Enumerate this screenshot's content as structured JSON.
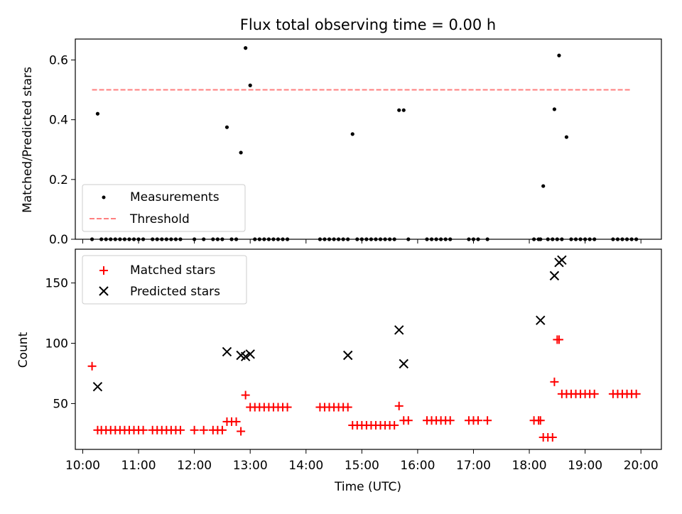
{
  "figure": {
    "title": "Flux total observing time = 0.00 h",
    "xlabel": "Time (UTC)"
  },
  "chart_data": [
    {
      "type": "scatter",
      "ylabel": "Matched/Predicted stars",
      "xlim": [
        "09:52",
        "20:22"
      ],
      "ylim": [
        0,
        0.67
      ],
      "yticks": [
        0.0,
        0.2,
        0.4,
        0.6
      ],
      "ytick_labels": [
        "0.0",
        "0.2",
        "0.4",
        "0.6"
      ],
      "legend_position": "lower-left",
      "colors": {
        "measurements": "#000000",
        "threshold": "#ff7f7f"
      },
      "series": [
        {
          "name": "Measurements",
          "kind": "points",
          "x": [
            "10:10",
            "10:16",
            "10:20",
            "10:25",
            "10:30",
            "10:35",
            "10:40",
            "10:45",
            "10:50",
            "10:55",
            "11:00",
            "11:05",
            "11:15",
            "11:20",
            "11:25",
            "11:30",
            "11:35",
            "11:40",
            "11:45",
            "12:00",
            "12:10",
            "12:20",
            "12:25",
            "12:30",
            "12:35",
            "12:40",
            "12:45",
            "12:50",
            "12:55",
            "13:00",
            "13:05",
            "13:10",
            "13:15",
            "13:20",
            "13:25",
            "13:30",
            "13:35",
            "13:40",
            "14:15",
            "14:20",
            "14:25",
            "14:30",
            "14:35",
            "14:40",
            "14:45",
            "14:50",
            "14:55",
            "15:00",
            "15:05",
            "15:10",
            "15:15",
            "15:20",
            "15:25",
            "15:30",
            "15:35",
            "15:40",
            "15:45",
            "15:50",
            "16:10",
            "16:15",
            "16:20",
            "16:25",
            "16:30",
            "16:35",
            "16:55",
            "17:00",
            "17:05",
            "17:15",
            "18:05",
            "18:10",
            "18:12",
            "18:15",
            "18:20",
            "18:25",
            "18:27",
            "18:30",
            "18:32",
            "18:35",
            "18:40",
            "18:45",
            "18:50",
            "18:55",
            "19:00",
            "19:05",
            "19:10",
            "19:30",
            "19:35",
            "19:40",
            "19:45",
            "19:50",
            "19:55"
          ],
          "y": [
            0.0,
            0.42,
            0.0,
            0.0,
            0.0,
            0.0,
            0.0,
            0.0,
            0.0,
            0.0,
            0.0,
            0.0,
            0.0,
            0.0,
            0.0,
            0.0,
            0.0,
            0.0,
            0.0,
            0.0,
            0.0,
            0.0,
            0.0,
            0.0,
            0.375,
            0.0,
            0.0,
            0.29,
            0.64,
            0.515,
            0.0,
            0.0,
            0.0,
            0.0,
            0.0,
            0.0,
            0.0,
            0.0,
            0.0,
            0.0,
            0.0,
            0.0,
            0.0,
            0.0,
            0.0,
            0.352,
            0.0,
            0.0,
            0.0,
            0.0,
            0.0,
            0.0,
            0.0,
            0.0,
            0.0,
            0.432,
            0.432,
            0.0,
            0.0,
            0.0,
            0.0,
            0.0,
            0.0,
            0.0,
            0.0,
            0.0,
            0.0,
            0.0,
            0.0,
            0.0,
            0.0,
            0.178,
            0.0,
            0.0,
            0.435,
            0.0,
            0.615,
            0.0,
            0.342,
            0.0,
            0.0,
            0.0,
            0.0,
            0.0,
            0.0,
            0.0,
            0.0,
            0.0,
            0.0,
            0.0,
            0.0
          ]
        },
        {
          "name": "Threshold",
          "kind": "dashed-line",
          "x": [
            "10:10",
            "19:50"
          ],
          "y": [
            0.5,
            0.5
          ]
        }
      ]
    },
    {
      "type": "scatter",
      "ylabel": "Count",
      "xlim": [
        "09:52",
        "20:22"
      ],
      "ylim": [
        12,
        178
      ],
      "yticks": [
        50,
        100,
        150
      ],
      "ytick_labels": [
        "50",
        "100",
        "150"
      ],
      "xticks": [
        "10:00",
        "11:00",
        "12:00",
        "13:00",
        "14:00",
        "15:00",
        "16:00",
        "17:00",
        "18:00",
        "19:00",
        "20:00"
      ],
      "xtick_labels": [
        "10:00",
        "11:00",
        "12:00",
        "13:00",
        "14:00",
        "15:00",
        "16:00",
        "17:00",
        "18:00",
        "19:00",
        "20:00"
      ],
      "legend_position": "upper-left",
      "colors": {
        "matched": "#ff0000",
        "predicted": "#000000"
      },
      "series": [
        {
          "name": "Matched stars",
          "kind": "plus",
          "x": [
            "10:10",
            "10:16",
            "10:20",
            "10:25",
            "10:30",
            "10:35",
            "10:40",
            "10:45",
            "10:50",
            "10:55",
            "11:00",
            "11:05",
            "11:15",
            "11:20",
            "11:25",
            "11:30",
            "11:35",
            "11:40",
            "11:45",
            "12:00",
            "12:10",
            "12:20",
            "12:25",
            "12:30",
            "12:35",
            "12:40",
            "12:45",
            "12:50",
            "12:55",
            "13:00",
            "13:05",
            "13:10",
            "13:15",
            "13:20",
            "13:25",
            "13:30",
            "13:35",
            "13:40",
            "14:15",
            "14:20",
            "14:25",
            "14:30",
            "14:35",
            "14:40",
            "14:45",
            "14:50",
            "14:55",
            "15:00",
            "15:05",
            "15:10",
            "15:15",
            "15:20",
            "15:25",
            "15:30",
            "15:35",
            "15:40",
            "15:45",
            "15:50",
            "16:10",
            "16:15",
            "16:20",
            "16:25",
            "16:30",
            "16:35",
            "16:55",
            "17:00",
            "17:05",
            "17:15",
            "18:05",
            "18:10",
            "18:12",
            "18:15",
            "18:20",
            "18:25",
            "18:27",
            "18:30",
            "18:32",
            "18:35",
            "18:40",
            "18:45",
            "18:50",
            "18:55",
            "19:00",
            "19:05",
            "19:10",
            "19:30",
            "19:35",
            "19:40",
            "19:45",
            "19:50",
            "19:55"
          ],
          "y": [
            81,
            28,
            28,
            28,
            28,
            28,
            28,
            28,
            28,
            28,
            28,
            28,
            28,
            28,
            28,
            28,
            28,
            28,
            28,
            28,
            28,
            28,
            28,
            28,
            35,
            35,
            35,
            27,
            57,
            47,
            47,
            47,
            47,
            47,
            47,
            47,
            47,
            47,
            47,
            47,
            47,
            47,
            47,
            47,
            47,
            32,
            32,
            32,
            32,
            32,
            32,
            32,
            32,
            32,
            32,
            48,
            36,
            36,
            36,
            36,
            36,
            36,
            36,
            36,
            36,
            36,
            36,
            36,
            36,
            36,
            36,
            22,
            22,
            22,
            68,
            103,
            103,
            58,
            58,
            58,
            58,
            58,
            58,
            58,
            58,
            58,
            58,
            58,
            58,
            58,
            58
          ]
        },
        {
          "name": "Predicted stars",
          "kind": "x",
          "x": [
            "10:16",
            "12:35",
            "12:50",
            "12:55",
            "13:00",
            "14:45",
            "15:40",
            "15:45",
            "18:12",
            "18:27",
            "18:32",
            "18:35"
          ],
          "y": [
            64,
            93,
            90,
            89,
            91,
            90,
            111,
            83,
            119,
            156,
            167,
            169
          ]
        }
      ]
    }
  ]
}
